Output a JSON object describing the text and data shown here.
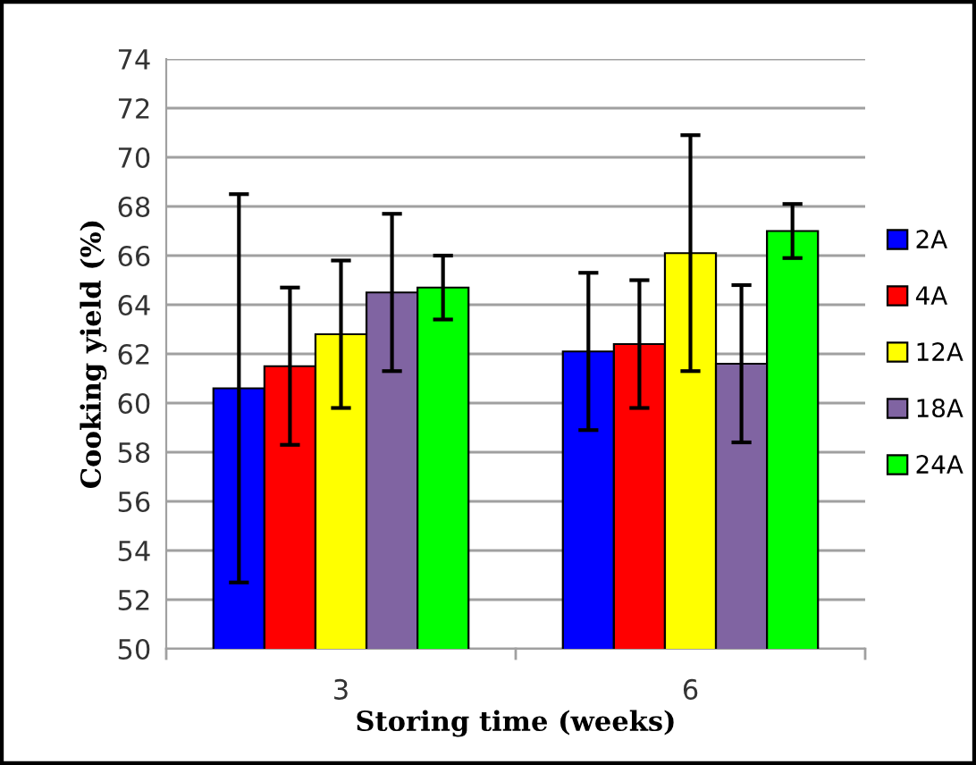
{
  "chart_data": {
    "type": "bar",
    "xlabel": "Storing time (weeks)",
    "ylabel": "Cooking yield (%)",
    "categories": [
      "3",
      "6"
    ],
    "series": [
      {
        "name": "2A",
        "color": "#0000ff",
        "values": [
          60.6,
          62.1
        ],
        "errors": [
          7.9,
          3.2
        ]
      },
      {
        "name": "4A",
        "color": "#ff0000",
        "values": [
          61.5,
          62.4
        ],
        "errors": [
          3.2,
          2.6
        ]
      },
      {
        "name": "12A",
        "color": "#ffff00",
        "values": [
          62.8,
          66.1
        ],
        "errors": [
          3.0,
          4.8
        ]
      },
      {
        "name": "18A",
        "color": "#8064a2",
        "values": [
          64.5,
          61.6
        ],
        "errors": [
          3.2,
          3.2
        ]
      },
      {
        "name": "24A",
        "color": "#00ff00",
        "values": [
          64.7,
          67.0
        ],
        "errors": [
          1.3,
          1.1
        ]
      }
    ],
    "ylim": [
      50,
      74
    ],
    "yticks": [
      50,
      52,
      54,
      56,
      58,
      60,
      62,
      64,
      66,
      68,
      70,
      72,
      74
    ],
    "grid": "y",
    "legend": "right"
  }
}
